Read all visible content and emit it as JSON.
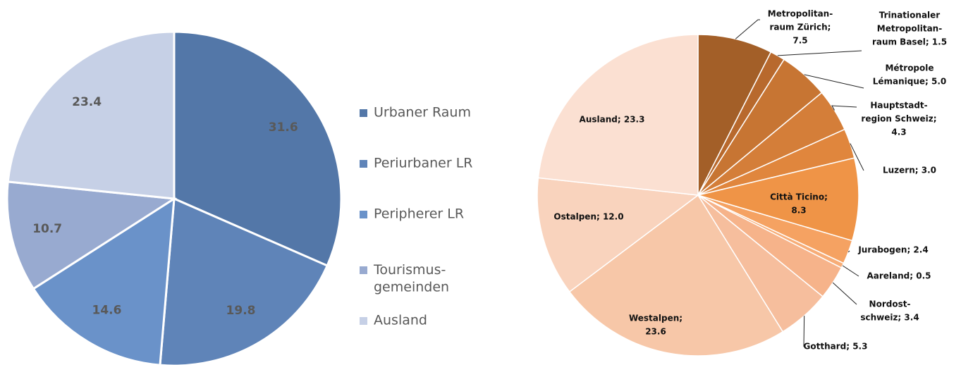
{
  "chart_data": [
    {
      "type": "pie",
      "categories": [
        "Urbaner Raum",
        "Periurbaner LR",
        "Peripherer LR",
        "Tourismus-\ngemeinden",
        "Ausland"
      ],
      "values": [
        31.6,
        19.8,
        14.6,
        10.7,
        23.4
      ],
      "colors": [
        "#5377a8",
        "#5f84b8",
        "#6a92c9",
        "#98aad0",
        "#c6d0e6"
      ],
      "legend": "right"
    },
    {
      "type": "pie",
      "values": [
        7.5,
        1.5,
        5.0,
        4.3,
        3.0,
        8.3,
        2.4,
        0.5,
        3.4,
        5.3,
        23.6,
        12.0,
        23.3
      ],
      "value_labels": [
        [
          "Metropolitan-",
          "raum Zürich;",
          "7.5"
        ],
        [
          "Trinationaler",
          "Metropolitan-",
          "raum Basel; 1.5"
        ],
        [
          "Métropole",
          "Lémanique; 5.0"
        ],
        [
          "Hauptstadt-",
          "region Schweiz;",
          "4.3"
        ],
        [
          "Luzern; 3.0"
        ],
        [
          "Città Ticino;",
          "8.3"
        ],
        [
          "Jurabogen; 2.4"
        ],
        [
          "Aareland; 0.5"
        ],
        [
          "Nordost-",
          "schweiz; 3.4"
        ],
        [
          "Gotthard; 5.3"
        ],
        [
          "Westalpen;",
          "23.6"
        ],
        [
          "Ostalpen; 12.0"
        ],
        [
          "Ausland; 23.3"
        ]
      ],
      "colors": [
        "#a35f28",
        "#b8692d",
        "#c77533",
        "#d47e39",
        "#e0863d",
        "#ef9447",
        "#f5a262",
        "#f7ad77",
        "#f6b38a",
        "#f6be9d",
        "#f7c7a8",
        "#f9d3bd",
        "#fbe0d2"
      ]
    }
  ]
}
